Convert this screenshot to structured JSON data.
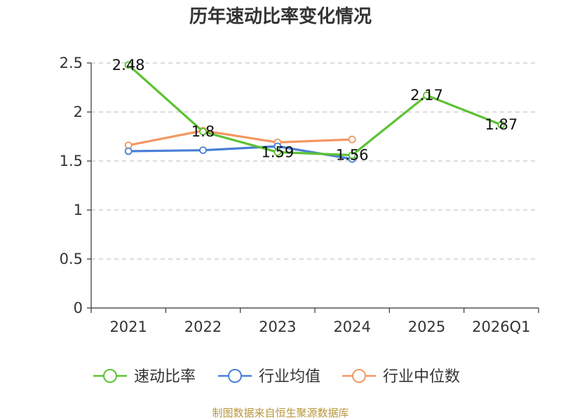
{
  "chart_data": {
    "type": "line",
    "title": "历年速动比率变化情况",
    "categories": [
      "2021",
      "2022",
      "2023",
      "2024",
      "2025",
      "2026Q1"
    ],
    "ylim": [
      0,
      2.5
    ],
    "yticks": [
      "0",
      "0.5",
      "1",
      "1.5",
      "2",
      "2.5"
    ],
    "grid": true,
    "legend_position": "bottom",
    "series": [
      {
        "name": "速动比率",
        "color": "#5cc232",
        "values": [
          2.48,
          1.8,
          1.59,
          1.56,
          2.17,
          1.87
        ],
        "labels": [
          "2.48",
          "1.8",
          "1.59",
          "1.56",
          "2.17",
          "1.87"
        ]
      },
      {
        "name": "行业均值",
        "color": "#4a7fd6",
        "values": [
          1.6,
          1.61,
          1.65,
          1.52,
          null,
          null
        ]
      },
      {
        "name": "行业中位数",
        "color": "#f49660",
        "values": [
          1.66,
          1.81,
          1.69,
          1.72,
          null,
          null
        ]
      }
    ]
  },
  "source": "制图数据来自恒生聚源数据库"
}
